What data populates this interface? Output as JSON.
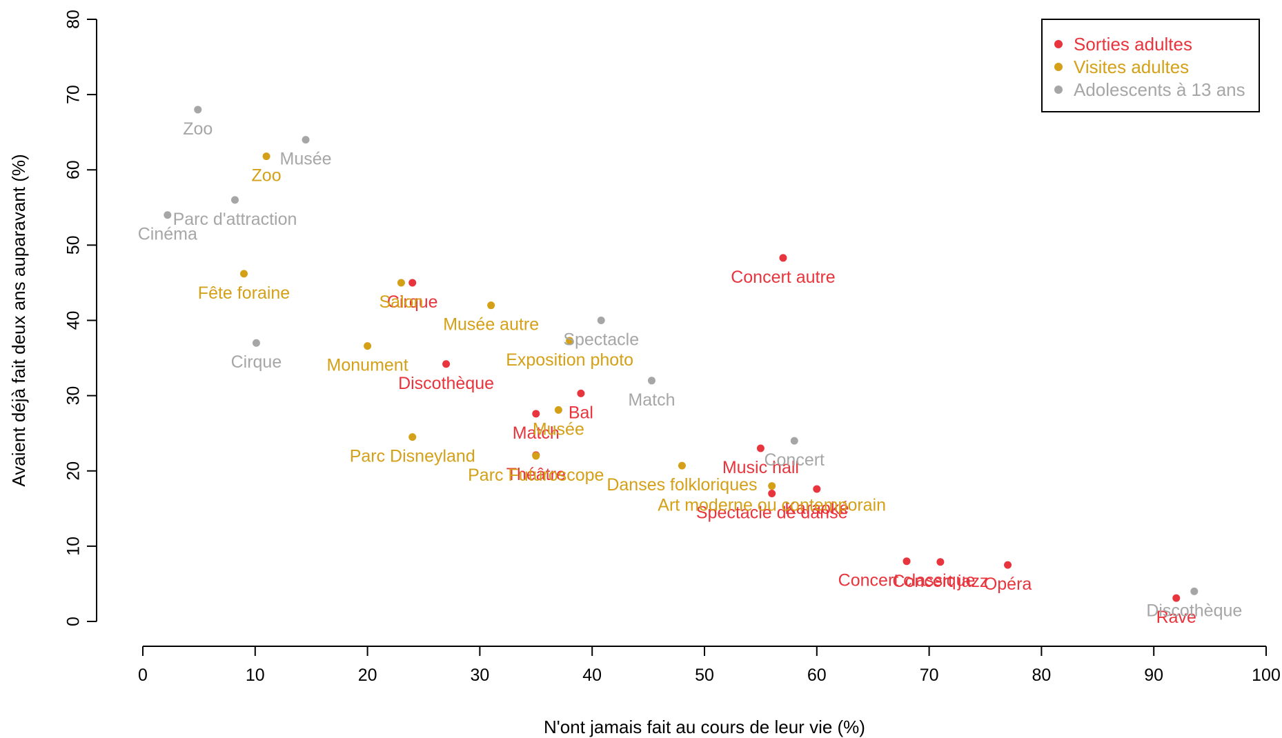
{
  "chart_data": {
    "type": "scatter",
    "xlabel": "N'ont jamais fait au cours de leur vie (%)",
    "ylabel": "Avaient déjà fait deux ans auparavant (%)",
    "xlim": [
      0,
      100
    ],
    "ylim": [
      0,
      80
    ],
    "x_ticks": [
      "0",
      "10",
      "20",
      "30",
      "40",
      "50",
      "60",
      "70",
      "80",
      "90",
      "100"
    ],
    "y_ticks": [
      "0",
      "10",
      "20",
      "30",
      "40",
      "50",
      "60",
      "70",
      "80"
    ],
    "grid": false,
    "legend_position": "top-right",
    "series": [
      {
        "name": "Sorties adultes",
        "color": "#e8343c",
        "points": [
          {
            "label": "Cirque",
            "x": 24,
            "y": 45
          },
          {
            "label": "Concert autre",
            "x": 57,
            "y": 48.3
          },
          {
            "label": "Discothèque",
            "x": 27,
            "y": 34.2
          },
          {
            "label": "Match",
            "x": 35,
            "y": 27.6
          },
          {
            "label": "Bal",
            "x": 39,
            "y": 30.3
          },
          {
            "label": "Théâtre",
            "x": 35,
            "y": 22.1
          },
          {
            "label": "Music hall",
            "x": 55,
            "y": 23
          },
          {
            "label": "Spectacle de danse",
            "x": 56,
            "y": 17
          },
          {
            "label": "Karaoké",
            "x": 60,
            "y": 17.6
          },
          {
            "label": "Concert classique",
            "x": 68,
            "y": 8
          },
          {
            "label": "Concert jazz",
            "x": 71,
            "y": 7.9
          },
          {
            "label": "Opéra",
            "x": 77,
            "y": 7.5
          },
          {
            "label": "Rave",
            "x": 92,
            "y": 3.1
          }
        ]
      },
      {
        "name": "Visites adultes",
        "color": "#d4a017",
        "points": [
          {
            "label": "Zoo",
            "x": 11,
            "y": 61.8
          },
          {
            "label": "Fête foraine",
            "x": 9,
            "y": 46.2
          },
          {
            "label": "Salon",
            "x": 23,
            "y": 45
          },
          {
            "label": "Musée autre",
            "x": 31,
            "y": 42
          },
          {
            "label": "Monument",
            "x": 20,
            "y": 36.6
          },
          {
            "label": "Exposition photo",
            "x": 38,
            "y": 37.3
          },
          {
            "label": "Musée",
            "x": 37,
            "y": 28.1
          },
          {
            "label": "Parc Disneyland",
            "x": 24,
            "y": 24.5
          },
          {
            "label": "Parc Futuroscope",
            "x": 35,
            "y": 22
          },
          {
            "label": "Danses folkloriques",
            "x": 48,
            "y": 20.7
          },
          {
            "label": "Art moderne ou contemporain",
            "x": 56,
            "y": 18
          }
        ]
      },
      {
        "name": "Adolescents à 13 ans",
        "color": "#a6a6a6",
        "points": [
          {
            "label": "Zoo",
            "x": 4.9,
            "y": 68
          },
          {
            "label": "Musée",
            "x": 14.5,
            "y": 64
          },
          {
            "label": "Parc d'attraction",
            "x": 8.2,
            "y": 56
          },
          {
            "label": "Cinéma",
            "x": 2.2,
            "y": 54
          },
          {
            "label": "Spectacle",
            "x": 40.8,
            "y": 40
          },
          {
            "label": "Cirque",
            "x": 10.1,
            "y": 37
          },
          {
            "label": "Match",
            "x": 45.3,
            "y": 32
          },
          {
            "label": "Concert",
            "x": 58,
            "y": 24
          },
          {
            "label": "Discothèque",
            "x": 93.6,
            "y": 4
          }
        ]
      }
    ]
  }
}
